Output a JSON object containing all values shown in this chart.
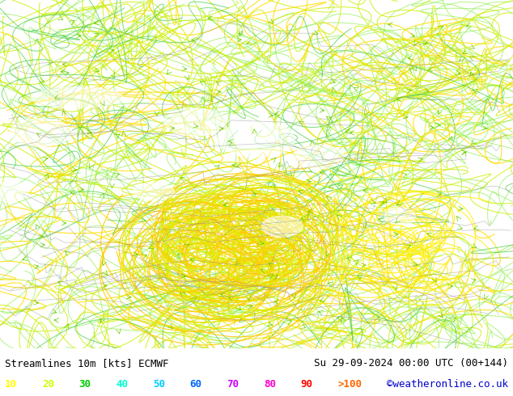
{
  "title_left": "Streamlines 10m [kts] ECMWF",
  "title_right": "Su 29-09-2024 00:00 UTC (00+144)",
  "credit": "©weatheronline.co.uk",
  "legend_values": [
    "10",
    "20",
    "30",
    "40",
    "50",
    "60",
    "70",
    "80",
    "90",
    ">100"
  ],
  "legend_colors": [
    "#ffff00",
    "#ccff00",
    "#00cc00",
    "#00ffcc",
    "#00ccff",
    "#0066ff",
    "#cc00ff",
    "#ff00cc",
    "#ff0000",
    "#ff6600"
  ],
  "bg_color": "#aaffaa",
  "text_color": "#000000",
  "fig_width": 6.34,
  "fig_height": 4.9,
  "bottom_bar_color": "#ffffff",
  "font_size_title": 9,
  "font_size_legend": 9,
  "coast_color": "#888888"
}
